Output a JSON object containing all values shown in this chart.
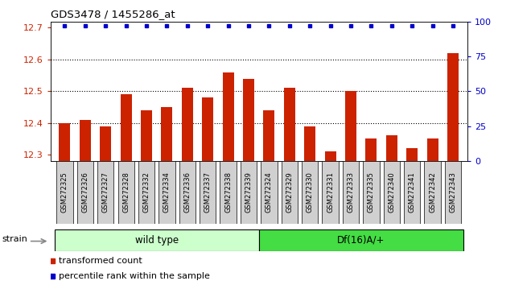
{
  "title": "GDS3478 / 1455286_at",
  "samples": [
    "GSM272325",
    "GSM272326",
    "GSM272327",
    "GSM272328",
    "GSM272332",
    "GSM272334",
    "GSM272336",
    "GSM272337",
    "GSM272338",
    "GSM272339",
    "GSM272324",
    "GSM272329",
    "GSM272330",
    "GSM272331",
    "GSM272333",
    "GSM272335",
    "GSM272340",
    "GSM272341",
    "GSM272342",
    "GSM272343"
  ],
  "bar_values": [
    12.4,
    12.41,
    12.39,
    12.49,
    12.44,
    12.45,
    12.51,
    12.48,
    12.56,
    12.54,
    12.44,
    12.51,
    12.39,
    12.31,
    12.5,
    12.35,
    12.36,
    12.32,
    12.35,
    12.62
  ],
  "percentile_values": [
    100,
    100,
    100,
    100,
    100,
    100,
    100,
    100,
    100,
    100,
    100,
    100,
    100,
    100,
    100,
    100,
    100,
    100,
    100,
    100
  ],
  "bar_color": "#cc2200",
  "percentile_color": "#0000cc",
  "ylim_left": [
    12.28,
    12.72
  ],
  "ylim_right": [
    0,
    100
  ],
  "yticks_left": [
    12.3,
    12.4,
    12.5,
    12.6,
    12.7
  ],
  "yticks_right": [
    0,
    25,
    50,
    75,
    100
  ],
  "grid_values": [
    12.4,
    12.5,
    12.6
  ],
  "wild_type_count": 10,
  "group1_label": "wild type",
  "group2_label": "Df(16)A/+",
  "group1_color": "#ccffcc",
  "group2_color": "#44dd44",
  "xtick_bg_color": "#d0d0d0",
  "strain_label": "strain",
  "legend_bar_label": "transformed count",
  "legend_pct_label": "percentile rank within the sample",
  "plot_bg_color": "#ffffff"
}
